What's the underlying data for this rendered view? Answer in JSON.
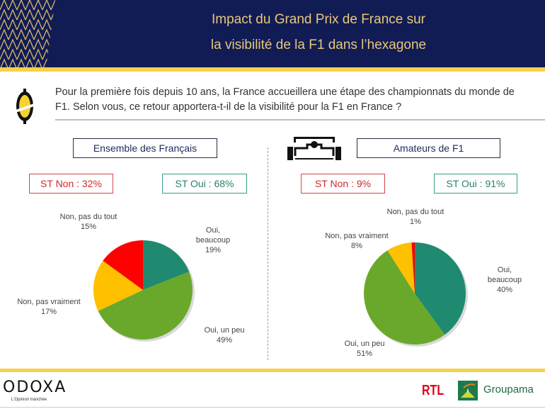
{
  "header": {
    "title_line1": "Impact du Grand Prix de France sur",
    "title_line2": "la visibilité de la F1 dans l’hexagone"
  },
  "question": {
    "icon": "odoxa-lemon-icon",
    "text": "Pour la première fois depuis 10 ans, la France accueillera une étape des championnats du monde de F1. Selon vous, ce retour apportera-t-il de la visibilité pour la F1 en France ?"
  },
  "segments": [
    {
      "title": "Ensemble des Français",
      "st_non": "ST Non : 32%",
      "st_oui": "ST Oui : 68%"
    },
    {
      "icon": "f1-car-icon",
      "title": "Amateurs de F1",
      "st_non": "ST Non : 9%",
      "st_oui": "ST Oui : 91%"
    }
  ],
  "colors": {
    "oui_beaucoup": "#1f8a70",
    "oui_un_peu": "#6aa82b",
    "non_pas_vraiment": "#ffc000",
    "non_pas_du_tout": "#ff0000",
    "header_bg": "#111c55",
    "accent_yellow": "#f7d14c"
  },
  "chart_data": [
    {
      "type": "pie",
      "title": "Ensemble des Français",
      "categories": [
        "Oui, beaucoup",
        "Oui, un peu",
        "Non, pas vraiment",
        "Non, pas du tout"
      ],
      "values": [
        19,
        49,
        17,
        15
      ],
      "labels": [
        {
          "line1": "Oui,",
          "line2": "beaucoup",
          "pct": "19%"
        },
        {
          "line1": "Oui, un peu",
          "pct": "49%"
        },
        {
          "line1": "Non, pas vraiment",
          "pct": "17%"
        },
        {
          "line1": "Non, pas du tout",
          "pct": "15%"
        }
      ],
      "legend": "none"
    },
    {
      "type": "pie",
      "title": "Amateurs de F1",
      "categories": [
        "Oui, beaucoup",
        "Oui, un peu",
        "Non, pas vraiment",
        "Non, pas du tout"
      ],
      "values": [
        40,
        51,
        8,
        1
      ],
      "labels": [
        {
          "line1": "Oui,",
          "line2": "beaucoup",
          "pct": "40%"
        },
        {
          "line1": "Oui, un peu",
          "pct": "51%"
        },
        {
          "line1": "Non, pas vraiment",
          "pct": "8%"
        },
        {
          "line1": "Non, pas du tout",
          "pct": "1%"
        }
      ],
      "legend": "none"
    }
  ],
  "footer": {
    "brand": "ODOXA",
    "tagline": "L'Opinion tranchée",
    "partner1": "RTL",
    "partner2": "Groupama"
  }
}
